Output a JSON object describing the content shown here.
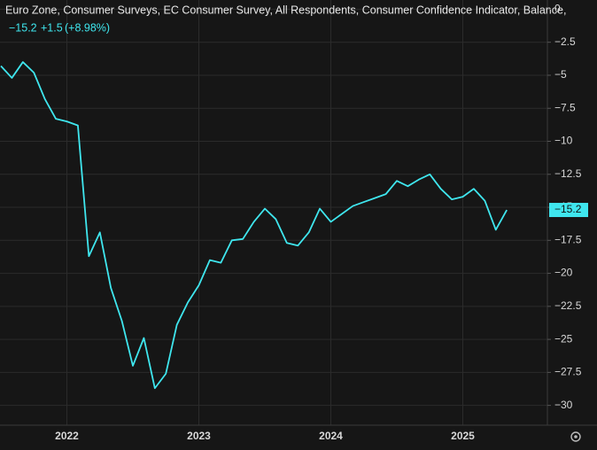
{
  "chart_data": {
    "type": "line",
    "title": "Euro Zone, Consumer Surveys, EC Consumer Survey, All Respondents, Consumer Confidence Indicator, Balance,",
    "last_value_label": "−15.2",
    "change_label": "+1.5",
    "change_pct_label": "(+8.98%)",
    "x": [
      "2021-07",
      "2021-08",
      "2021-09",
      "2021-10",
      "2021-11",
      "2021-12",
      "2022-01",
      "2022-02",
      "2022-03",
      "2022-04",
      "2022-05",
      "2022-06",
      "2022-07",
      "2022-08",
      "2022-09",
      "2022-10",
      "2022-11",
      "2022-12",
      "2023-01",
      "2023-02",
      "2023-03",
      "2023-04",
      "2023-05",
      "2023-06",
      "2023-07",
      "2023-08",
      "2023-09",
      "2023-10",
      "2023-11",
      "2023-12",
      "2024-01",
      "2024-02",
      "2024-03",
      "2024-04",
      "2024-05",
      "2024-06",
      "2024-07",
      "2024-08",
      "2024-09",
      "2024-10",
      "2024-11",
      "2024-12",
      "2025-01",
      "2025-02",
      "2025-03",
      "2025-04",
      "2025-05"
    ],
    "series": [
      {
        "name": "Consumer Confidence Indicator",
        "color": "#3fe6ee",
        "values": [
          -4.3,
          -5.2,
          -4.0,
          -4.8,
          -6.8,
          -8.3,
          -8.5,
          -8.8,
          -18.7,
          -16.9,
          -21.1,
          -23.6,
          -27.0,
          -24.9,
          -28.7,
          -27.6,
          -23.9,
          -22.2,
          -20.9,
          -19.0,
          -19.2,
          -17.5,
          -17.4,
          -16.1,
          -15.1,
          -15.9,
          -17.7,
          -17.9,
          -16.9,
          -15.1,
          -16.1,
          -15.5,
          -14.9,
          -14.6,
          -14.3,
          -14.0,
          -13.0,
          -13.4,
          -12.9,
          -12.5,
          -13.6,
          -14.4,
          -14.2,
          -13.6,
          -14.5,
          -16.7,
          -15.2
        ]
      }
    ],
    "xlim": [
      "2021-07",
      "2025-07"
    ],
    "xticks": [
      "2022",
      "2023",
      "2024",
      "2025"
    ],
    "ylim": [
      -31.5,
      0.7
    ],
    "yticks": [
      0,
      {
        "value": -2.5,
        "label": "−2.5"
      },
      {
        "value": -5,
        "label": "−5"
      },
      {
        "value": -7.5,
        "label": "−7.5"
      },
      {
        "value": -10,
        "label": "−10"
      },
      {
        "value": -12.5,
        "label": "−12.5"
      },
      {
        "value": -15,
        "label": "−15"
      },
      {
        "value": -17.5,
        "label": "−17.5"
      },
      {
        "value": -20,
        "label": "−20"
      },
      {
        "value": -22.5,
        "label": "−22.5"
      },
      {
        "value": -25,
        "label": "−25"
      },
      {
        "value": -27.5,
        "label": "−27.5"
      },
      {
        "value": -30,
        "label": "−30"
      }
    ],
    "grid": true
  }
}
